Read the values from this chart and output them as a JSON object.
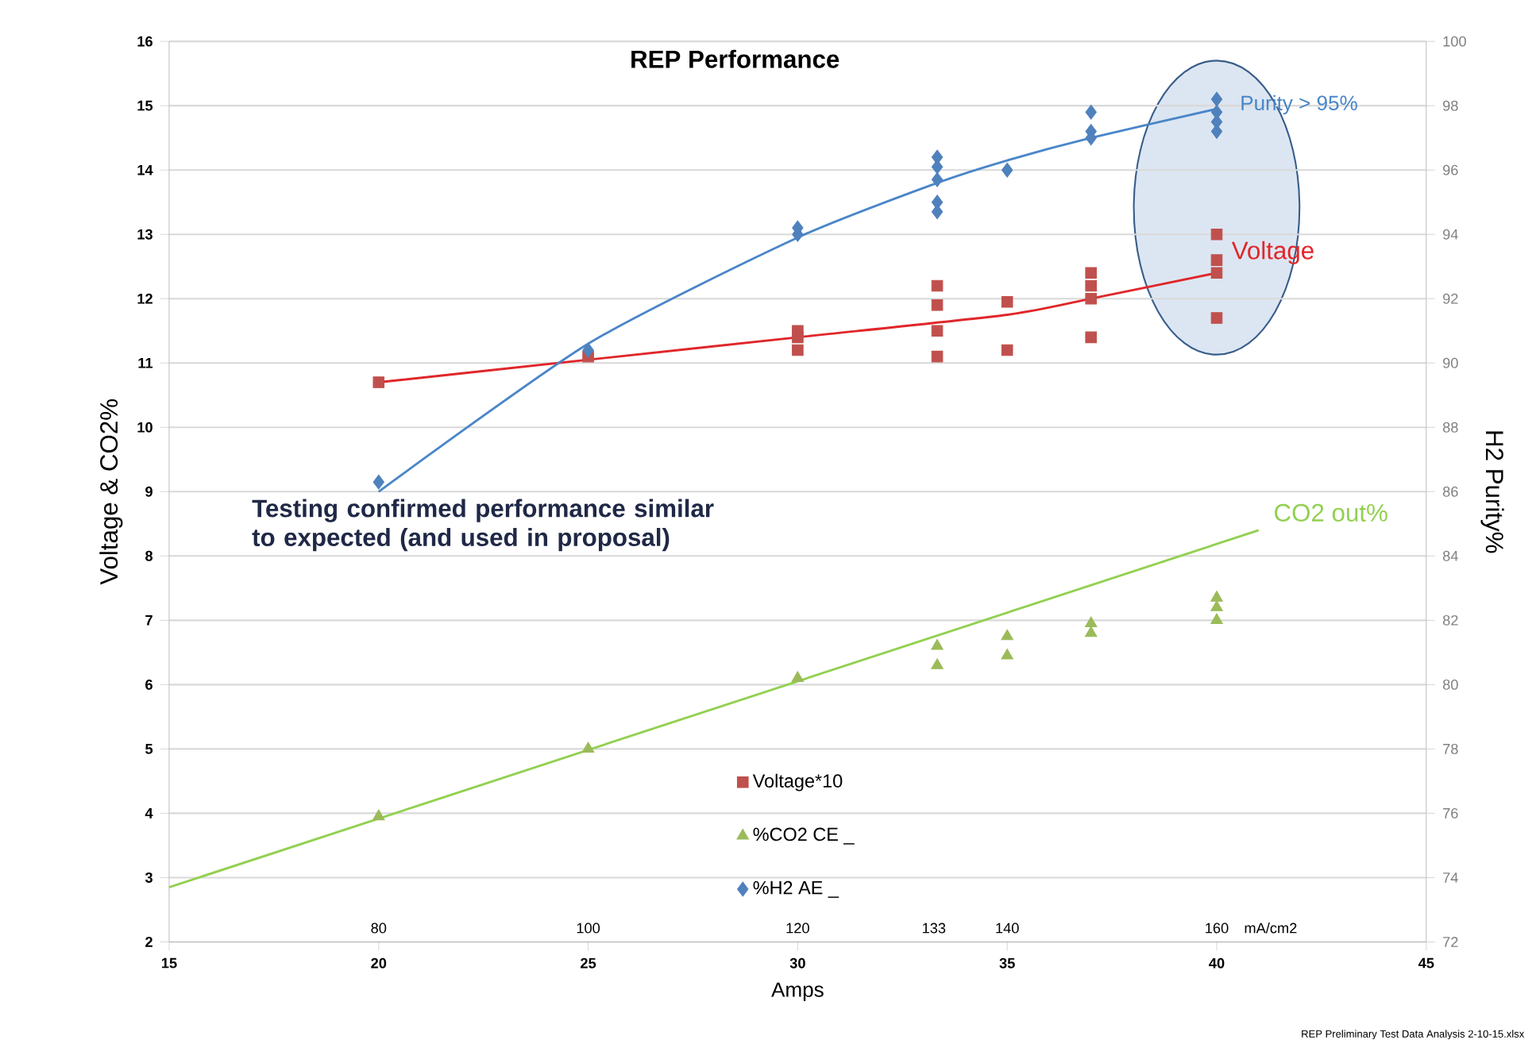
{
  "chart_data": {
    "type": "scatter",
    "title": "REP Performance",
    "xlabel": "Amps",
    "ylabel": "Voltage & CO2%",
    "y2label": "H2 Purity%",
    "xlim": [
      15,
      45
    ],
    "xticks": [
      15,
      20,
      25,
      30,
      35,
      40,
      45
    ],
    "ylim": [
      2,
      16
    ],
    "yticks": [
      2,
      3,
      4,
      5,
      6,
      7,
      8,
      9,
      10,
      11,
      12,
      13,
      14,
      15,
      16
    ],
    "y2lim": [
      72,
      100
    ],
    "y2ticks": [
      72,
      74,
      76,
      78,
      80,
      82,
      84,
      86,
      88,
      90,
      92,
      94,
      96,
      98,
      100
    ],
    "x2lim": [
      60,
      180
    ],
    "x2label": "mA/cm2",
    "x2ticks": [
      80,
      100,
      120,
      133,
      140,
      160
    ],
    "grid": "y",
    "legend": "bottom",
    "series": [
      {
        "name": "Voltage*10",
        "marker": "square",
        "color": "#c0504d",
        "x": [
          20,
          25,
          30,
          30,
          30,
          33.33,
          33.33,
          33.33,
          33.33,
          35,
          35,
          37,
          37,
          37,
          37,
          40,
          40,
          40,
          40
        ],
        "values": [
          10.7,
          11.1,
          11.5,
          11.4,
          11.2,
          12.2,
          11.9,
          11.5,
          11.1,
          11.95,
          11.2,
          12.4,
          12.2,
          12.0,
          11.4,
          13.0,
          12.6,
          12.4,
          11.7
        ]
      },
      {
        "name": "%CO2 CE _",
        "marker": "triangle",
        "color": "#9bbb59",
        "x": [
          20,
          25,
          30,
          33.33,
          33.33,
          35,
          35,
          37,
          37,
          40,
          40,
          40
        ],
        "values": [
          3.95,
          5.0,
          6.1,
          6.6,
          6.3,
          6.75,
          6.45,
          6.95,
          6.8,
          7.35,
          7.2,
          7.0
        ]
      },
      {
        "name": "%H2 AE _",
        "marker": "diamond",
        "color": "#4f81bd",
        "axis": "y2",
        "x": [
          20,
          25,
          30,
          30,
          33.33,
          33.33,
          33.33,
          33.33,
          33.33,
          35,
          37,
          37,
          37,
          40,
          40,
          40,
          40
        ],
        "values": [
          86.3,
          90.4,
          94.2,
          94.0,
          96.4,
          96.1,
          95.7,
          95.0,
          94.7,
          96.0,
          97.8,
          97.2,
          97.0,
          98.2,
          97.8,
          97.5,
          97.2
        ]
      },
      {
        "name": "Voltage",
        "type": "line",
        "marker": "none",
        "color": "#e0262a",
        "x": [
          20,
          25,
          30,
          35,
          37,
          40
        ],
        "values": [
          10.7,
          11.05,
          11.4,
          11.75,
          12.0,
          12.4
        ]
      },
      {
        "name": "CO2 out%",
        "type": "line",
        "marker": "none",
        "color": "#92d050",
        "x": [
          15,
          41
        ],
        "values": [
          2.85,
          8.4
        ]
      },
      {
        "name": "Purity > 95%",
        "type": "line",
        "marker": "none",
        "color": "#4a86c8",
        "axis": "y2",
        "x": [
          20,
          25,
          30,
          33.33,
          35,
          37,
          40
        ],
        "values": [
          86.0,
          90.6,
          93.9,
          95.6,
          96.3,
          97.0,
          97.9
        ]
      }
    ],
    "annotations": [
      "Testing confirmed performance similar to expected (and used in proposal)",
      "REP Preliminary Test Data Analysis 2-10-15.xlsx"
    ]
  }
}
